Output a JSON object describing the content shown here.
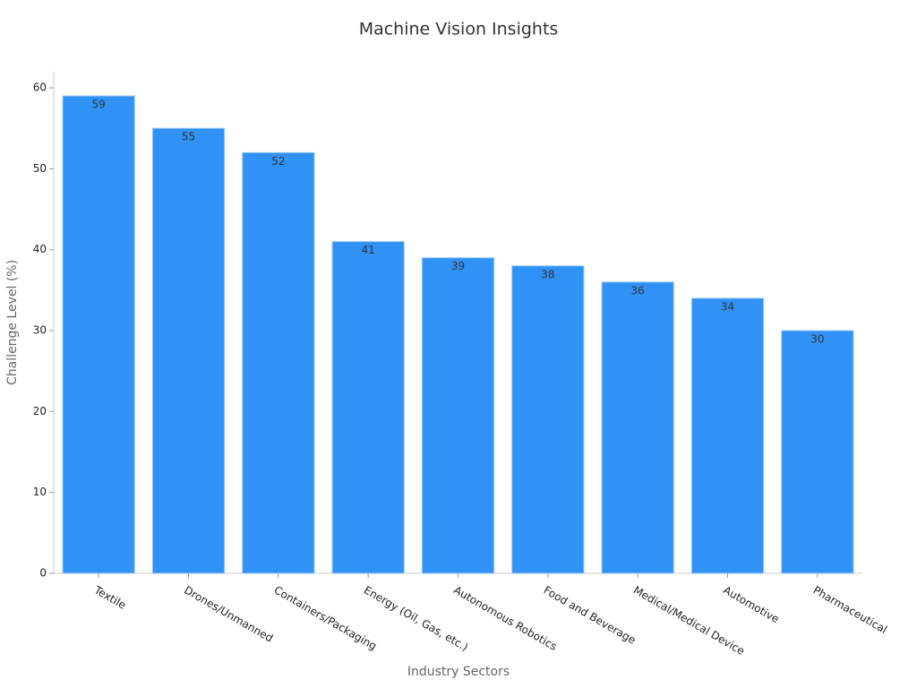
{
  "chart_data": {
    "type": "bar",
    "title": "Machine Vision Insights",
    "x_label": "Industry Sectors",
    "y_label": "Challenge Level (%)",
    "categories": [
      "Textile",
      "Drones/Unmanned",
      "Containers/Packaging",
      "Energy (Oil, Gas, etc.)",
      "Autonomous Robotics",
      "Food and Beverage",
      "Medical/Medical Device",
      "Automotive",
      "Pharmaceutical"
    ],
    "values": [
      59,
      55,
      52,
      41,
      39,
      38,
      36,
      34,
      30
    ],
    "color": "#3092f5",
    "ylim": [
      0,
      62
    ],
    "yticks": [
      0,
      10,
      20,
      30,
      40,
      50,
      60
    ],
    "grid": false
  }
}
